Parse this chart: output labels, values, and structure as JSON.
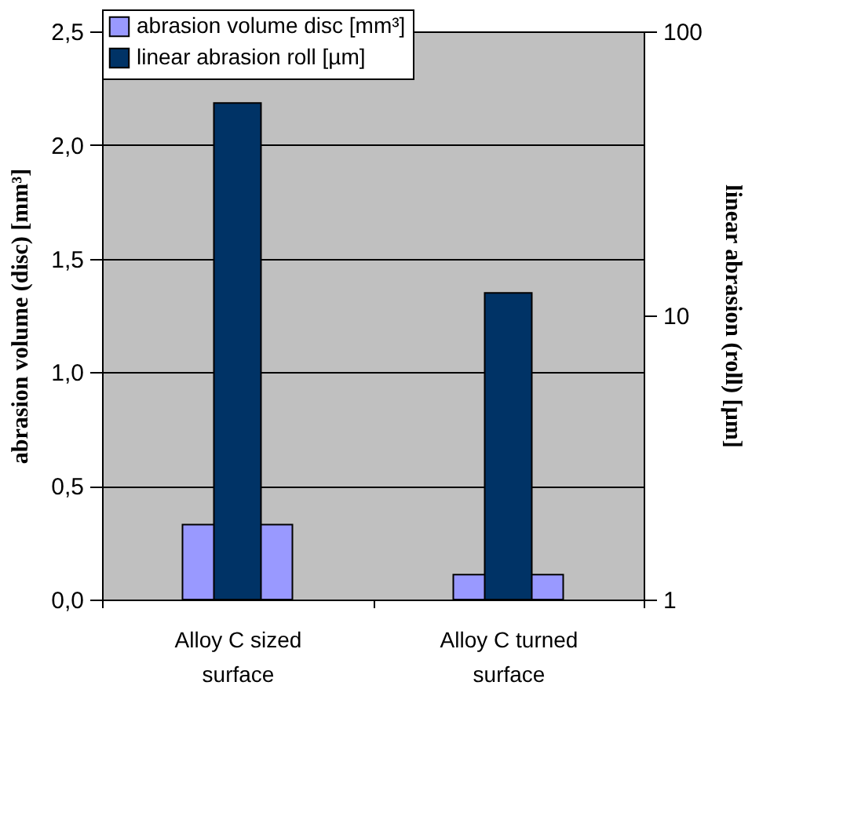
{
  "chart_data": {
    "type": "bar",
    "categories": [
      "Alloy C sized surface",
      "Alloy C turned surface"
    ],
    "series": [
      {
        "name": "abrasion volume disc [mm³]",
        "color": "#9999ff",
        "values": [
          0.33,
          0.11
        ]
      },
      {
        "name": "linear abrasion roll [µm]",
        "color": "#003366",
        "values": [
          56,
          12
        ],
        "axis": "y2"
      }
    ],
    "ylabel": "abrasion volume (disc) [mm³]",
    "y2label": "linear abrasion (roll) [µm]",
    "ylim": [
      0,
      2.5
    ],
    "yticks": [
      {
        "value": 0,
        "label": "0,0"
      },
      {
        "value": 0.5,
        "label": "0,5"
      },
      {
        "value": 1.0,
        "label": "1,0"
      },
      {
        "value": 1.5,
        "label": "1,5"
      },
      {
        "value": 2.0,
        "label": "2,0"
      },
      {
        "value": 2.5,
        "label": "2,5"
      }
    ],
    "y2lim": [
      1,
      100
    ],
    "y2ticks": [
      1,
      10,
      100
    ],
    "log": "y2",
    "grid": "y",
    "legend": "top"
  }
}
